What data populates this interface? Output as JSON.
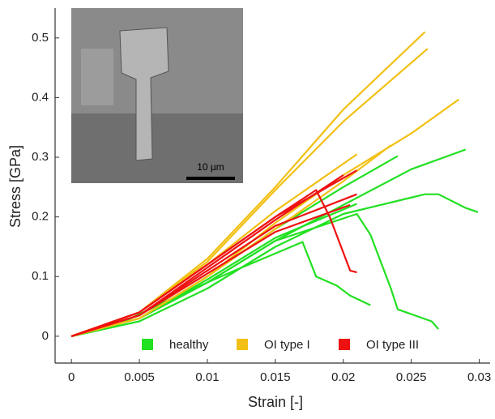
{
  "chart_data": {
    "type": "line",
    "x_label": "Strain [-]",
    "y_label": "Stress [GPa]",
    "inset_label": "10 µm",
    "xlim": [
      -0.0012,
      0.0308
    ],
    "ylim": [
      -0.045,
      0.55
    ],
    "xticks": [
      0,
      0.005,
      0.01,
      0.015,
      0.02,
      0.025,
      0.03
    ],
    "yticks": [
      0,
      0.1,
      0.2,
      0.3,
      0.4,
      0.5
    ],
    "grid": false,
    "legend": "bottom",
    "series": [
      {
        "name": "healthy",
        "color": "#22e022",
        "curves": [
          {
            "x": [
              0,
              0.003,
              0.008,
              0.012,
              0.017,
              0.018,
              0.0195,
              0.0205,
              0.022
            ],
            "y": [
              0,
              0.015,
              0.07,
              0.11,
              0.158,
              0.1,
              0.085,
              0.068,
              0.052
            ]
          },
          {
            "x": [
              0,
              0.005,
              0.01,
              0.015,
              0.02,
              0.024
            ],
            "y": [
              0,
              0.03,
              0.1,
              0.18,
              0.25,
              0.302
            ]
          },
          {
            "x": [
              0,
              0.005,
              0.01,
              0.015,
              0.02,
              0.025,
              0.029
            ],
            "y": [
              0,
              0.03,
              0.09,
              0.16,
              0.22,
              0.28,
              0.313
            ]
          },
          {
            "x": [
              0,
              0.005,
              0.01,
              0.015,
              0.02,
              0.026,
              0.027,
              0.029,
              0.0299
            ],
            "y": [
              0,
              0.025,
              0.08,
              0.15,
              0.205,
              0.238,
              0.238,
              0.215,
              0.208
            ]
          },
          {
            "x": [
              0,
              0.005,
              0.01,
              0.015,
              0.021,
              0.022,
              0.0235,
              0.024,
              0.0265,
              0.027
            ],
            "y": [
              0,
              0.03,
              0.09,
              0.16,
              0.205,
              0.17,
              0.08,
              0.045,
              0.025,
              0.012
            ]
          },
          {
            "x": [
              0,
              0.005,
              0.01,
              0.015,
              0.021
            ],
            "y": [
              0,
              0.03,
              0.095,
              0.165,
              0.222
            ]
          }
        ]
      },
      {
        "name": "OI type I",
        "color": "#f2c014",
        "curves": [
          {
            "x": [
              0,
              0.005,
              0.01,
              0.015,
              0.02,
              0.026
            ],
            "y": [
              0,
              0.04,
              0.13,
              0.25,
              0.38,
              0.51
            ]
          },
          {
            "x": [
              0,
              0.005,
              0.01,
              0.015,
              0.02,
              0.0262
            ],
            "y": [
              0,
              0.04,
              0.125,
              0.245,
              0.36,
              0.482
            ]
          },
          {
            "x": [
              0,
              0.005,
              0.01,
              0.015,
              0.02,
              0.025,
              0.0285
            ],
            "y": [
              0,
              0.03,
              0.1,
              0.19,
              0.27,
              0.34,
              0.397
            ]
          },
          {
            "x": [
              0,
              0.005,
              0.01,
              0.015,
              0.021
            ],
            "y": [
              0,
              0.04,
              0.12,
              0.21,
              0.305
            ]
          },
          {
            "x": [
              0,
              0.005,
              0.01,
              0.015,
              0.02,
              0.0235
            ],
            "y": [
              0,
              0.03,
              0.1,
              0.18,
              0.26,
              0.32
            ]
          }
        ]
      },
      {
        "name": "OI type III",
        "color": "#ee1111",
        "curves": [
          {
            "x": [
              0,
              0.005,
              0.01,
              0.015,
              0.018,
              0.019,
              0.0205,
              0.021
            ],
            "y": [
              0,
              0.04,
              0.12,
              0.2,
              0.245,
              0.2,
              0.11,
              0.107
            ]
          },
          {
            "x": [
              0,
              0.005,
              0.01,
              0.015,
              0.021
            ],
            "y": [
              0,
              0.04,
              0.12,
              0.2,
              0.278
            ]
          },
          {
            "x": [
              0,
              0.005,
              0.01,
              0.015,
              0.021
            ],
            "y": [
              0,
              0.035,
              0.11,
              0.185,
              0.238
            ]
          },
          {
            "x": [
              0,
              0.005,
              0.01,
              0.015,
              0.02
            ],
            "y": [
              0,
              0.035,
              0.115,
              0.195,
              0.27
            ]
          },
          {
            "x": [
              0,
              0.005,
              0.01,
              0.015,
              0.0205
            ],
            "y": [
              0,
              0.035,
              0.105,
              0.175,
              0.22
            ]
          }
        ]
      }
    ]
  }
}
